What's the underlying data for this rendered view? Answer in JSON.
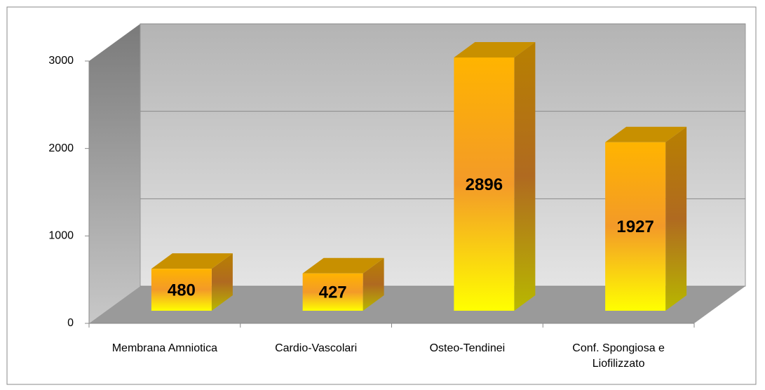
{
  "chart_data": {
    "type": "bar3d",
    "categories": [
      "Membrana Amniotica",
      "Cardio-Vascolari",
      "Osteo-Tendinei",
      "Conf. Spongiosa e Liofilizzato"
    ],
    "values": [
      480,
      427,
      2896,
      1927
    ],
    "ylim": [
      0,
      3000
    ],
    "yticks": [
      0,
      1000,
      2000,
      3000
    ],
    "grid": true
  }
}
